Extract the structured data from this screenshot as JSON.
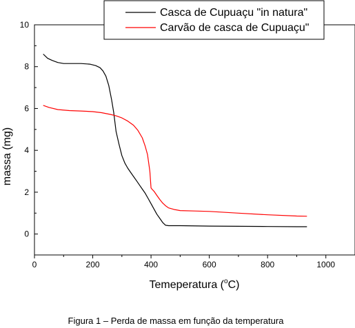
{
  "chart_data": {
    "type": "line",
    "xlabel": "Temeperatura (°C)",
    "xlabel_parts": {
      "pre": "Temeperatura (",
      "sup": "o",
      "post": "C)"
    },
    "ylabel": "massa (mg)",
    "xlim": [
      0,
      1100
    ],
    "ylim": [
      -1,
      10
    ],
    "x_ticks": [
      0,
      200,
      400,
      600,
      800,
      1000
    ],
    "y_ticks": [
      0,
      2,
      4,
      6,
      8,
      10
    ],
    "grid": false,
    "legend_position": "top-right",
    "series": [
      {
        "name": "Casca de Cupuaçu \"in natura\"",
        "color": "#000000",
        "x": [
          30,
          45,
          60,
          80,
          100,
          130,
          160,
          190,
          210,
          225,
          235,
          245,
          255,
          265,
          272,
          280,
          290,
          300,
          310,
          320,
          330,
          340,
          350,
          360,
          370,
          380,
          390,
          400,
          410,
          420,
          430,
          440,
          450,
          460,
          500,
          600,
          700,
          800,
          900,
          935
        ],
        "y": [
          8.6,
          8.4,
          8.3,
          8.2,
          8.15,
          8.15,
          8.15,
          8.12,
          8.05,
          7.95,
          7.8,
          7.55,
          7.1,
          6.4,
          5.8,
          4.9,
          4.3,
          3.75,
          3.4,
          3.15,
          2.95,
          2.75,
          2.55,
          2.35,
          2.15,
          1.95,
          1.7,
          1.45,
          1.2,
          0.95,
          0.75,
          0.55,
          0.42,
          0.4,
          0.4,
          0.38,
          0.37,
          0.36,
          0.35,
          0.35
        ]
      },
      {
        "name": "Carvão de casca de Cupuaçu\"",
        "color": "#ff0000",
        "x": [
          30,
          50,
          80,
          120,
          160,
          200,
          230,
          260,
          280,
          300,
          320,
          340,
          355,
          370,
          380,
          388,
          392,
          396,
          400,
          403,
          410,
          420,
          430,
          440,
          450,
          460,
          480,
          500,
          550,
          600,
          700,
          800,
          900,
          935
        ],
        "y": [
          6.15,
          6.05,
          5.95,
          5.9,
          5.88,
          5.85,
          5.8,
          5.72,
          5.65,
          5.55,
          5.4,
          5.2,
          4.95,
          4.6,
          4.2,
          3.8,
          3.4,
          3.0,
          2.2,
          2.15,
          2.05,
          1.85,
          1.65,
          1.48,
          1.35,
          1.25,
          1.17,
          1.12,
          1.1,
          1.08,
          1.0,
          0.92,
          0.86,
          0.85
        ]
      }
    ]
  },
  "caption": "Figura 1 – Perda de massa em função da temperatura"
}
